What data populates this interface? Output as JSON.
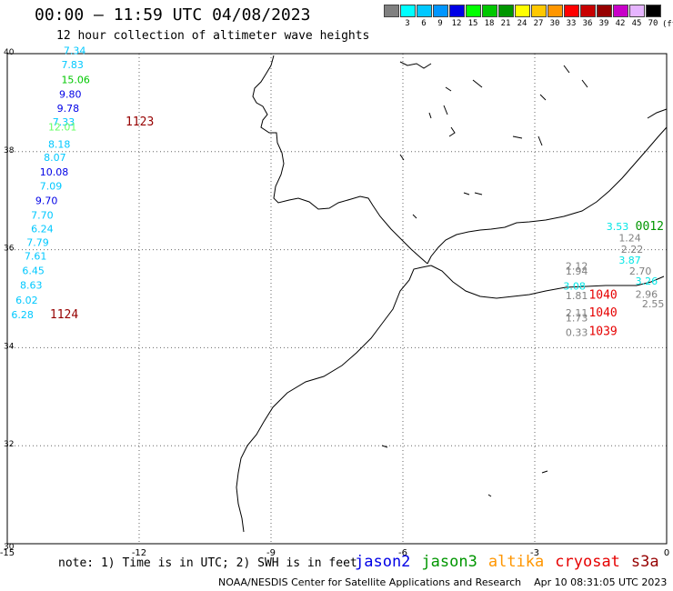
{
  "title": "00:00 – 11:59 UTC 04/08/2023",
  "subtitle": "12 hour collection of altimeter wave heights",
  "legend": {
    "unit": "(ft)",
    "items": [
      {
        "label": "",
        "color": "#808080"
      },
      {
        "label": "3",
        "color": "#00ffff"
      },
      {
        "label": "6",
        "color": "#00c8ff"
      },
      {
        "label": "9",
        "color": "#0096ff"
      },
      {
        "label": "12",
        "color": "#0000e6"
      },
      {
        "label": "15",
        "color": "#00ff00"
      },
      {
        "label": "18",
        "color": "#00c800"
      },
      {
        "label": "21",
        "color": "#009600"
      },
      {
        "label": "24",
        "color": "#ffff00"
      },
      {
        "label": "27",
        "color": "#ffc800"
      },
      {
        "label": "30",
        "color": "#ff9600"
      },
      {
        "label": "33",
        "color": "#ff0000"
      },
      {
        "label": "36",
        "color": "#c80000"
      },
      {
        "label": "39",
        "color": "#960000"
      },
      {
        "label": "42",
        "color": "#c800c8"
      },
      {
        "label": "45",
        "color": "#e6b4ff"
      },
      {
        "label": "70",
        "color": "#000000"
      }
    ]
  },
  "map": {
    "lon_range": [
      -15,
      0
    ],
    "lat_range": [
      30,
      40
    ],
    "x_ticks": [
      "-15",
      "-12",
      "-9",
      "-6",
      "-3",
      "0"
    ],
    "y_ticks": [
      "40",
      "38",
      "36",
      "34",
      "32",
      "30"
    ]
  },
  "observations": [
    {
      "v": "7.34",
      "lon": -13.72,
      "lat": 39.99,
      "color": "#00c8ff"
    },
    {
      "v": "7.83",
      "lon": -13.77,
      "lat": 39.7,
      "color": "#00c8ff"
    },
    {
      "v": "15.06",
      "lon": -13.77,
      "lat": 39.4,
      "color": "#00c800"
    },
    {
      "v": "9.80",
      "lon": -13.82,
      "lat": 39.1,
      "color": "#0000e6"
    },
    {
      "v": "9.78",
      "lon": -13.87,
      "lat": 38.81,
      "color": "#0000e6"
    },
    {
      "v": "7.33",
      "lon": -13.97,
      "lat": 38.53,
      "color": "#00c8ff"
    },
    {
      "v": "12.01",
      "lon": -14.07,
      "lat": 38.43,
      "color": "#66ff66"
    },
    {
      "v": "8.18",
      "lon": -14.07,
      "lat": 38.08,
      "color": "#00c8ff"
    },
    {
      "v": "8.07",
      "lon": -14.17,
      "lat": 37.81,
      "color": "#00c8ff"
    },
    {
      "v": "10.08",
      "lon": -14.26,
      "lat": 37.51,
      "color": "#0000e6"
    },
    {
      "v": "7.09",
      "lon": -14.26,
      "lat": 37.23,
      "color": "#00c8ff"
    },
    {
      "v": "9.70",
      "lon": -14.36,
      "lat": 36.93,
      "color": "#0000e6"
    },
    {
      "v": "7.70",
      "lon": -14.46,
      "lat": 36.63,
      "color": "#00c8ff"
    },
    {
      "v": "6.24",
      "lon": -14.46,
      "lat": 36.35,
      "color": "#00c8ff"
    },
    {
      "v": "7.79",
      "lon": -14.56,
      "lat": 36.08,
      "color": "#00c8ff"
    },
    {
      "v": "7.61",
      "lon": -14.61,
      "lat": 35.8,
      "color": "#00c8ff"
    },
    {
      "v": "6.45",
      "lon": -14.66,
      "lat": 35.5,
      "color": "#00c8ff"
    },
    {
      "v": "8.63",
      "lon": -14.71,
      "lat": 35.2,
      "color": "#00c8ff"
    },
    {
      "v": "6.02",
      "lon": -14.81,
      "lat": 34.9,
      "color": "#00c8ff"
    },
    {
      "v": "6.28",
      "lon": -14.91,
      "lat": 34.6,
      "color": "#00c8ff"
    },
    {
      "v": "3.53",
      "lon": -1.37,
      "lat": 36.4,
      "color": "#00e6e6"
    },
    {
      "v": "1.24",
      "lon": -1.09,
      "lat": 36.17,
      "color": "#808080"
    },
    {
      "v": "2.22",
      "lon": -1.04,
      "lat": 35.94,
      "color": "#808080"
    },
    {
      "v": "3.87",
      "lon": -1.09,
      "lat": 35.71,
      "color": "#00e6e6"
    },
    {
      "v": "2.12",
      "lon": -2.3,
      "lat": 35.59,
      "color": "#808080"
    },
    {
      "v": "1.94",
      "lon": -2.3,
      "lat": 35.49,
      "color": "#808080"
    },
    {
      "v": "2.70",
      "lon": -0.85,
      "lat": 35.49,
      "color": "#808080"
    },
    {
      "v": "3.26",
      "lon": -0.71,
      "lat": 35.29,
      "color": "#00e6e6"
    },
    {
      "v": "3.08",
      "lon": -2.35,
      "lat": 35.19,
      "color": "#00e6e6"
    },
    {
      "v": "1.81",
      "lon": -2.3,
      "lat": 34.99,
      "color": "#808080"
    },
    {
      "v": "2.96",
      "lon": -0.71,
      "lat": 35.02,
      "color": "#808080"
    },
    {
      "v": "2.55",
      "lon": -0.56,
      "lat": 34.82,
      "color": "#808080"
    },
    {
      "v": "2.11",
      "lon": -2.3,
      "lat": 34.64,
      "color": "#808080"
    },
    {
      "v": "1.73",
      "lon": -2.3,
      "lat": 34.54,
      "color": "#808080"
    },
    {
      "v": "0.33",
      "lon": -2.3,
      "lat": 34.24,
      "color": "#808080"
    }
  ],
  "time_tags": [
    {
      "v": "1123",
      "lon": -12.31,
      "lat": 38.53,
      "color": "#960000"
    },
    {
      "v": "1124",
      "lon": -14.03,
      "lat": 34.6,
      "color": "#960000"
    },
    {
      "v": "0012",
      "lon": -0.71,
      "lat": 36.4,
      "color": "#009600"
    },
    {
      "v": "1040",
      "lon": -1.77,
      "lat": 35.0,
      "color": "#e60000"
    },
    {
      "v": "1040",
      "lon": -1.77,
      "lat": 34.64,
      "color": "#e60000"
    },
    {
      "v": "1039",
      "lon": -1.77,
      "lat": 34.26,
      "color": "#e60000"
    }
  ],
  "footer": {
    "note": "note: 1) Time is in UTC; 2) SWH is in feet",
    "satellites": [
      {
        "name": "jason2",
        "color": "#0000e6"
      },
      {
        "name": "jason3",
        "color": "#009600"
      },
      {
        "name": "altika",
        "color": "#ff9600"
      },
      {
        "name": "cryosat",
        "color": "#e60000"
      },
      {
        "name": "s3a",
        "color": "#960000"
      }
    ],
    "credit": "NOAA/NESDIS Center for Satellite Applications and Research",
    "timestamp": "Apr 10 08:31:05 UTC 2023"
  }
}
